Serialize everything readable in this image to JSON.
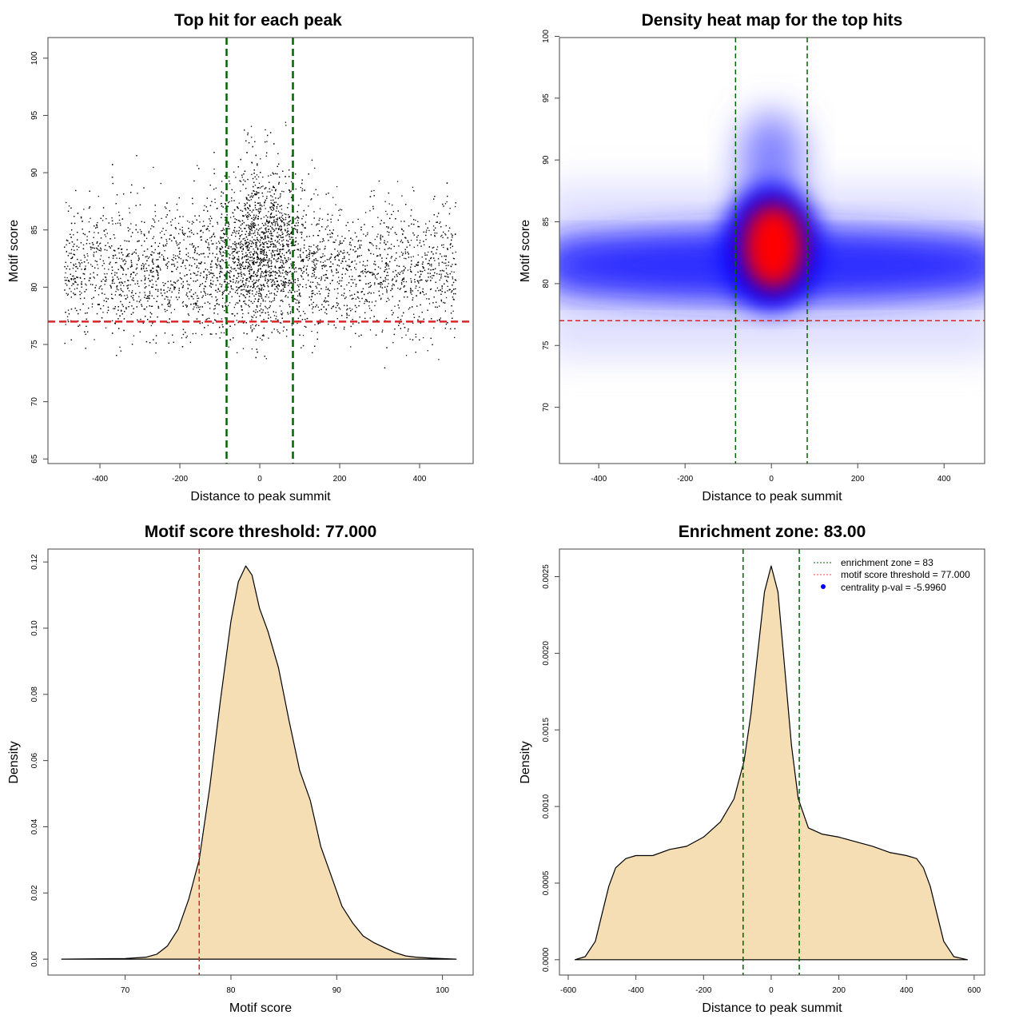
{
  "chart_data": [
    {
      "type": "scatter",
      "title": "Top hit for each peak",
      "xlabel": "Distance to peak summit",
      "ylabel": "Motif score",
      "xlim": [
        -530,
        534
      ],
      "ylim": [
        64.6,
        101.8
      ],
      "xticks": [
        -400,
        -200,
        0,
        200,
        400
      ],
      "yticks": [
        65,
        70,
        75,
        80,
        85,
        90,
        95,
        100
      ],
      "vlines": {
        "values": [
          -83,
          83
        ],
        "color": "#006400",
        "style": "dashed"
      },
      "hlines": {
        "values": [
          77
        ],
        "color": "#d62728",
        "style": "dashed"
      },
      "point_color": "#000000",
      "grid": false
    },
    {
      "type": "heatmap",
      "title": "Density heat map for the top hits",
      "xlabel": "Distance to peak summit",
      "ylabel": "Motif score",
      "xlim": [
        -491,
        494
      ],
      "ylim": [
        65.45,
        99.9
      ],
      "xticks": [
        -400,
        -200,
        0,
        200,
        400
      ],
      "yticks": [
        70,
        75,
        80,
        85,
        90,
        95,
        100
      ],
      "colorscale": [
        "#ffffff",
        "#0000ff",
        "#ff0000"
      ],
      "hotspot": {
        "x": 0,
        "y": 83
      },
      "band_center_y": 81.5,
      "vlines": {
        "values": [
          -83,
          83
        ],
        "color": "#006400",
        "style": "dashed"
      },
      "hlines": {
        "values": [
          77
        ],
        "color": "#d62728",
        "style": "dashed"
      },
      "grid": false
    },
    {
      "type": "area",
      "title": "Motif score threshold: 77.000",
      "xlabel": "Motif score",
      "ylabel": "Density",
      "xlim": [
        62.7,
        102.9
      ],
      "ylim": [
        -0.0048,
        0.1239
      ],
      "xticks": [
        70,
        80,
        90,
        100
      ],
      "yticks": [
        0.0,
        0.02,
        0.04,
        0.06,
        0.08,
        0.1,
        0.12
      ],
      "ytick_labels": [
        "0.00",
        "0.02",
        "0.04",
        "0.06",
        "0.08",
        "0.10",
        "0.12"
      ],
      "fill": "#f5deb3",
      "x": [
        64,
        70,
        72,
        73,
        74,
        75,
        76,
        77,
        78,
        79,
        80,
        80.7,
        81.4,
        82,
        82.7,
        83.5,
        84.5,
        85.5,
        86.5,
        87.5,
        88.5,
        89.5,
        90.5,
        91.5,
        92.5,
        93.5,
        94.5,
        95.5,
        96.5,
        97.5,
        99,
        101.3
      ],
      "y": [
        0,
        0.0002,
        0.0006,
        0.0015,
        0.004,
        0.009,
        0.018,
        0.03,
        0.052,
        0.078,
        0.102,
        0.114,
        0.1188,
        0.116,
        0.106,
        0.099,
        0.088,
        0.072,
        0.057,
        0.048,
        0.034,
        0.025,
        0.016,
        0.011,
        0.007,
        0.005,
        0.0035,
        0.002,
        0.001,
        0.0006,
        0.0003,
        0
      ],
      "vlines": {
        "values": [
          77
        ],
        "color": "#d62728",
        "style": "dashed"
      },
      "grid": false
    },
    {
      "type": "area",
      "title": "Enrichment zone: 83.00",
      "xlabel": "Distance to peak summit",
      "ylabel": "Density",
      "xlim": [
        -626,
        631
      ],
      "ylim": [
        -0.0001,
        0.00268
      ],
      "xticks": [
        -600,
        -400,
        -200,
        0,
        200,
        400,
        600
      ],
      "yticks": [
        0,
        0.0005,
        0.001,
        0.0015,
        0.002,
        0.0025
      ],
      "ytick_labels": [
        "0.0000",
        "0.0005",
        "0.0010",
        "0.0015",
        "0.0020",
        "0.0025"
      ],
      "fill": "#f5deb3",
      "x": [
        -580,
        -550,
        -520,
        -500,
        -480,
        -460,
        -430,
        -400,
        -350,
        -300,
        -250,
        -200,
        -150,
        -110,
        -80,
        -60,
        -40,
        -20,
        0,
        20,
        40,
        60,
        80,
        110,
        150,
        200,
        250,
        300,
        350,
        400,
        430,
        450,
        470,
        490,
        510,
        540,
        580
      ],
      "y": [
        0,
        2e-05,
        0.00012,
        0.0003,
        0.00048,
        0.0006,
        0.00066,
        0.00068,
        0.00068,
        0.00072,
        0.00074,
        0.0008,
        0.0009,
        0.00105,
        0.0013,
        0.0016,
        0.002,
        0.0024,
        0.00257,
        0.0024,
        0.0019,
        0.0014,
        0.00105,
        0.00086,
        0.00082,
        0.0008,
        0.00077,
        0.00074,
        0.0007,
        0.00068,
        0.00066,
        0.0006,
        0.00048,
        0.0003,
        0.00012,
        2e-05,
        0
      ],
      "vlines": {
        "values": [
          -83,
          83
        ],
        "color": "#006400",
        "style": "dashed"
      },
      "legend": {
        "position": "top-right",
        "entries": [
          {
            "label": "enrichment zone = 83",
            "color": "#006400",
            "marker": "dotted-line"
          },
          {
            "label": "motif score threshold = 77.000",
            "color": "#ff4040",
            "marker": "dotted-line"
          },
          {
            "label": "centrality p-val = -5.9960",
            "color": "#0000ff",
            "marker": "dot"
          }
        ]
      },
      "grid": false
    }
  ]
}
